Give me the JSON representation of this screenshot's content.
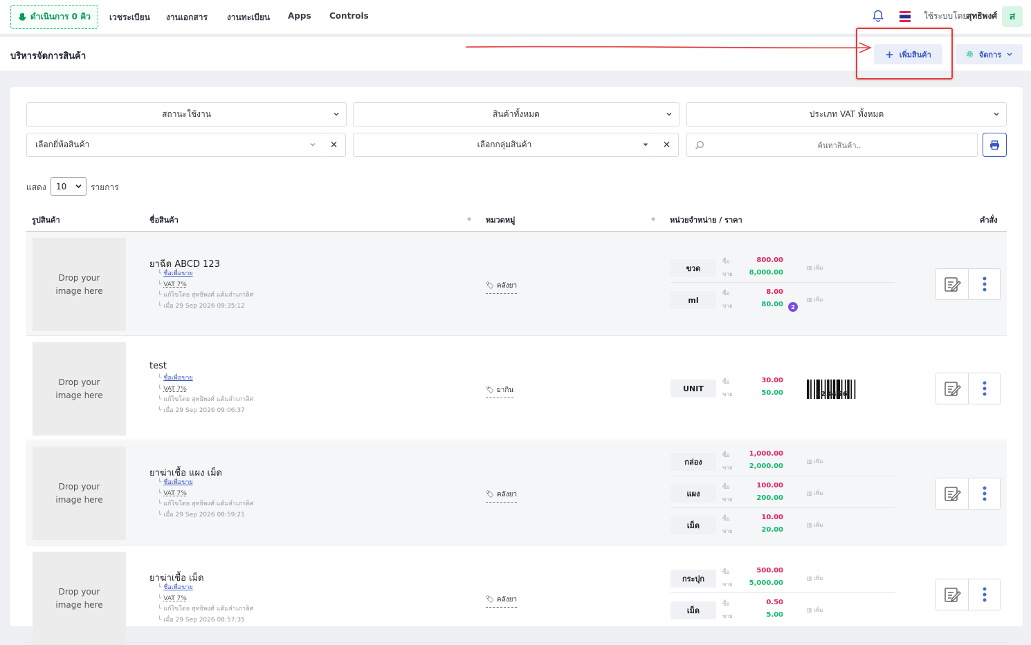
{
  "nav": {
    "queue_label": "ดำเนินการ 0 คิว",
    "items": [
      "เวชระเบียน",
      "งานเอกสาร",
      "งานทะเบียน",
      "Apps",
      "Controls"
    ],
    "user_prefix": "ใช้ระบบโดย",
    "user_name": "สุทธิพงศ์",
    "avatar_letter": "ส"
  },
  "header": {
    "title": "บริหารจัดการสินค้า",
    "add_label": "เพิ่มสินค้า",
    "manage_label": "จัดการ"
  },
  "filters": {
    "status": "สถานะใช้งาน",
    "all_products": "สินค้าทั้งหมด",
    "vat_type": "ประเภท VAT ทั้งหมด",
    "brand": "เลือกยี่ห้อสินค้า",
    "group": "เลือกกลุ่มสินค้า",
    "search_placeholder": "ค้นหาสินค้า.."
  },
  "paging": {
    "show": "แสดง",
    "size": "10",
    "items_word": "รายการ"
  },
  "table": {
    "headers": {
      "image": "รูปสินค้า",
      "name": "ชื่อสินค้า",
      "category": "หมวดหมู่",
      "units": "หน่วยจำหน่าย / ราคา",
      "actions": "คำสั่ง"
    },
    "drop_text_1": "Drop your",
    "drop_text_2": "image here",
    "buy_label": "ซื้อ",
    "sell_label": "ขาย",
    "add_barcode": "เพิ่ม",
    "rows": [
      {
        "name": "ยาฉีด ABCD 123",
        "sell_name": "ชื่อเพื่อขาย",
        "vat": "VAT 7%",
        "edited_by": "แก้ไขโดย สุทธิพงศ์ แต้มลำเภาลิศ",
        "edited_at": "เมื่อ 29 Sep 2026 09:35:12",
        "category": "คลังยา",
        "units": [
          {
            "unit": "ขวด",
            "buy": "800.00",
            "sell": "8,000.00"
          },
          {
            "unit": "ml",
            "buy": "8.00",
            "sell": "80.00",
            "badge": "2"
          }
        ]
      },
      {
        "name": "test",
        "sell_name": "ชื่อเพื่อขาย",
        "vat": "VAT 7%",
        "edited_by": "แก้ไขโดย สุทธิพงศ์ แต้มลำเภาลิศ",
        "edited_at": "เมื่อ 29 Sep 2026 09:06:37",
        "category": "ยากิน",
        "units": [
          {
            "unit": "UNIT",
            "buy": "30.00",
            "sell": "50.00",
            "barcode": "123456"
          }
        ]
      },
      {
        "name": "ยาฆ่าเชื้อ แผง เม็ด",
        "sell_name": "ชื่อเพื่อขาย",
        "vat": "VAT 7%",
        "edited_by": "แก้ไขโดย สุทธิพงศ์ แต้มลำเภาลิศ",
        "edited_at": "เมื่อ 29 Sep 2026 08:59:21",
        "category": "คลังยา",
        "units": [
          {
            "unit": "กล่อง",
            "buy": "1,000.00",
            "sell": "2,000.00"
          },
          {
            "unit": "แผง",
            "buy": "100.00",
            "sell": "200.00"
          },
          {
            "unit": "เม็ด",
            "buy": "10.00",
            "sell": "20.00"
          }
        ]
      },
      {
        "name": "ยาฆ่าเชื้อ เม็ด",
        "sell_name": "ชื่อเพื่อขาย",
        "vat": "VAT 7%",
        "edited_by": "แก้ไขโดย สุทธิพงศ์ แต้มลำเภาลิศ",
        "edited_at": "เมื่อ 29 Sep 2026 08:57:35",
        "category": "คลังยา",
        "units": [
          {
            "unit": "กระปุก",
            "buy": "500.00",
            "sell": "5,000.00"
          },
          {
            "unit": "เม็ด",
            "buy": "0.50",
            "sell": "5.00"
          }
        ]
      }
    ]
  },
  "colors": {
    "accent": "#3a57c4",
    "buy": "#e0245e",
    "sell": "#14b86e",
    "queue": "#0d9b57",
    "annotation": "#e23b3b"
  }
}
